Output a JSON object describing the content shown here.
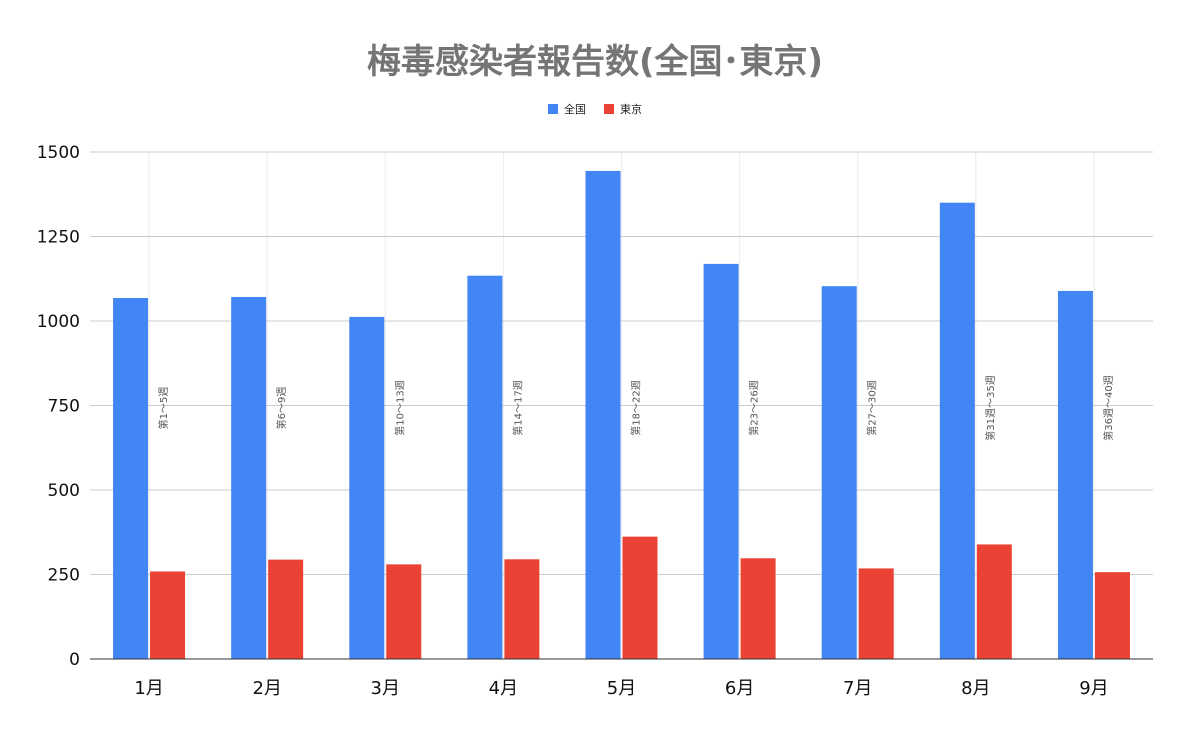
{
  "chart_data": {
    "type": "bar",
    "title": "梅毒感染者報告数(全国･東京)",
    "xlabel": "",
    "ylabel": "",
    "ylim": [
      0,
      1500
    ],
    "yticks": [
      0,
      250,
      500,
      750,
      1000,
      1250,
      1500
    ],
    "grid": true,
    "legend_position": "top",
    "categories": [
      "1月",
      "2月",
      "3月",
      "4月",
      "5月",
      "6月",
      "7月",
      "8月",
      "9月"
    ],
    "series": [
      {
        "name": "全国",
        "color": "#4285f4",
        "values": [
          1068,
          1071,
          1012,
          1134,
          1444,
          1169,
          1103,
          1350,
          1089
        ]
      },
      {
        "name": "東京",
        "color": "#ea4335",
        "values": [
          259,
          294,
          280,
          295,
          362,
          298,
          268,
          339,
          257
        ]
      }
    ],
    "annotations": [
      "第1～5週",
      "第6～9週",
      "第10～13週",
      "第14～17週",
      "第18～22週",
      "第23～26週",
      "第27～30週",
      "第31週～35週",
      "第36週～40週"
    ]
  }
}
